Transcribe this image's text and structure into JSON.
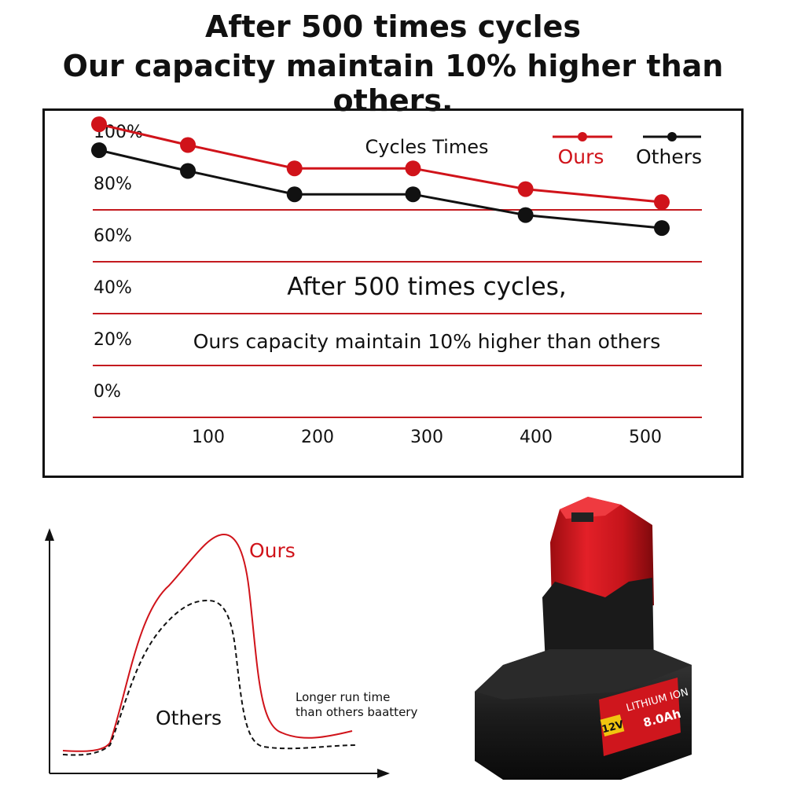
{
  "headline": {
    "line1": "After 500 times cycles",
    "line2": "Our capacity maintain 10% higher than others."
  },
  "colors": {
    "ours": "#d0131a",
    "others": "#111111",
    "grid": "#c41a1f"
  },
  "chart_data": [
    {
      "type": "line",
      "title": "Cycles Times",
      "annotation_line1": "After 500 times cycles,",
      "annotation_line2": "Ours capacity maintain 10% higher than others",
      "x": [
        50,
        125,
        215,
        315,
        410,
        525
      ],
      "xticks": [
        "100",
        "200",
        "300",
        "400",
        "500"
      ],
      "xtick_values": [
        100,
        200,
        300,
        400,
        500
      ],
      "yticks": [
        "100%",
        "80%",
        "60%",
        "40%",
        "20%",
        "0%"
      ],
      "ytick_values": [
        100,
        80,
        60,
        40,
        20,
        0
      ],
      "grid": true,
      "legend": "top-right",
      "series": [
        {
          "name": "Ours",
          "values": [
            113,
            105,
            96,
            96,
            88,
            83
          ]
        },
        {
          "name": "Others",
          "values": [
            103,
            95,
            86,
            86,
            78,
            73
          ]
        }
      ]
    },
    {
      "type": "line",
      "series": [
        {
          "name": "Ours",
          "style": "solid"
        },
        {
          "name": "Others",
          "style": "dashed"
        }
      ],
      "note_line1": "Longer run time",
      "note_line2": "than others baattery"
    }
  ],
  "product": {
    "badge": "12V",
    "label_line1": "LITHIUM ION",
    "label_line2": "8.0Ah"
  }
}
